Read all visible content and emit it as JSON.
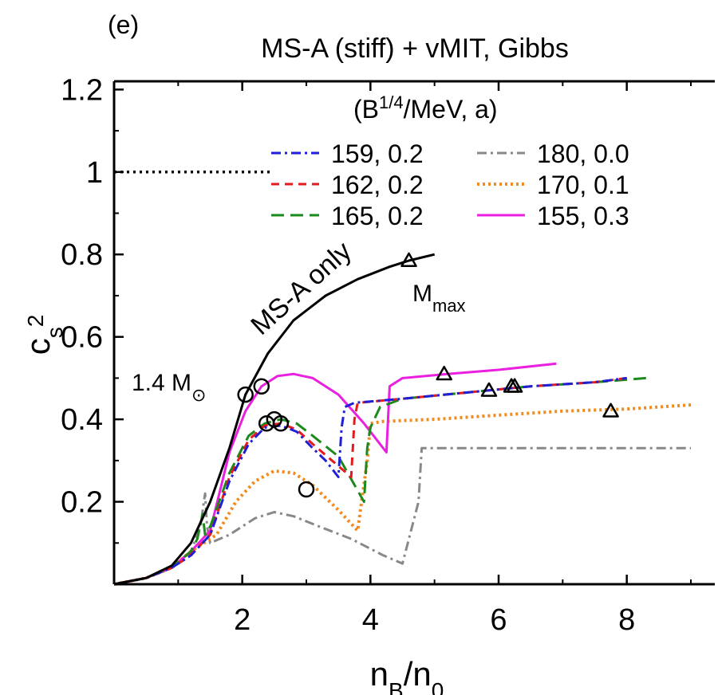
{
  "chart_data": {
    "type": "line",
    "panel_label": "(e)",
    "title": "MS-A (stiff) + vMIT, Gibbs",
    "xlim": [
      0,
      9
    ],
    "ylim": [
      0,
      1.22
    ],
    "x_ticks": [
      2,
      4,
      6,
      8
    ],
    "y_ticks": [
      0.2,
      0.4,
      0.6,
      0.8,
      1,
      1.2
    ],
    "x_tick_labels": [
      "2",
      "4",
      "6",
      "8"
    ],
    "y_tick_labels": [
      "0.2",
      "0.4",
      "0.6",
      "0.8",
      "1",
      "1.2"
    ],
    "xlabel": {
      "base": "n",
      "sub": "B",
      "rest": "/n",
      "sub2": "0"
    },
    "ylabel": {
      "base": "c",
      "sub": "s",
      "sup": "2"
    },
    "legend_title": {
      "pre": "(B",
      "sup": "1/4",
      "post": "/MeV, a)"
    },
    "causal_limit": {
      "y": 1,
      "x_range": [
        0,
        2.45
      ],
      "color": "#000000"
    },
    "annotations": {
      "only_label": "MS-A only",
      "mass_label": {
        "base": "1.4 M",
        "sub": "⊙"
      },
      "mmax_label": {
        "base": "M",
        "sub": "max"
      }
    },
    "series": [
      {
        "name": "MS-A only",
        "color": "#000000",
        "dash": "solid",
        "points": [
          [
            0,
            0
          ],
          [
            0.5,
            0.015
          ],
          [
            0.9,
            0.045
          ],
          [
            1.2,
            0.1
          ],
          [
            1.5,
            0.2
          ],
          [
            1.8,
            0.33
          ],
          [
            2.05,
            0.46
          ],
          [
            2.4,
            0.56
          ],
          [
            2.8,
            0.64
          ],
          [
            3.3,
            0.7
          ],
          [
            3.8,
            0.74
          ],
          [
            4.3,
            0.77
          ],
          [
            4.6,
            0.785
          ],
          [
            5.0,
            0.8
          ]
        ],
        "markers": [
          {
            "type": "circle",
            "x": 2.05,
            "y": 0.46
          },
          {
            "type": "triangle",
            "x": 4.6,
            "y": 0.785
          }
        ]
      },
      {
        "name": "159, 0.2",
        "color": "#1f1fd6",
        "dash": "dashdot",
        "points": [
          [
            0,
            0
          ],
          [
            0.5,
            0.015
          ],
          [
            0.9,
            0.04
          ],
          [
            1.2,
            0.07
          ],
          [
            1.5,
            0.12
          ],
          [
            1.8,
            0.25
          ],
          [
            2.1,
            0.34
          ],
          [
            2.35,
            0.38
          ],
          [
            2.6,
            0.385
          ],
          [
            2.85,
            0.37
          ],
          [
            3.1,
            0.33
          ],
          [
            3.3,
            0.3
          ],
          [
            3.5,
            0.26
          ],
          [
            3.55,
            0.38
          ],
          [
            3.6,
            0.43
          ],
          [
            3.75,
            0.44
          ],
          [
            4.5,
            0.45
          ],
          [
            5.5,
            0.465
          ],
          [
            6.5,
            0.48
          ],
          [
            7.5,
            0.49
          ],
          [
            8.0,
            0.5
          ]
        ],
        "markers": [
          {
            "type": "circle",
            "x": 2.5,
            "y": 0.4
          },
          {
            "type": "triangle",
            "x": 6.25,
            "y": 0.48
          }
        ]
      },
      {
        "name": "162, 0.2",
        "color": "#e41a1c",
        "dash": "dash",
        "points": [
          [
            0,
            0
          ],
          [
            0.5,
            0.015
          ],
          [
            0.9,
            0.04
          ],
          [
            1.1,
            0.06
          ],
          [
            1.25,
            0.08
          ],
          [
            1.5,
            0.12
          ],
          [
            1.8,
            0.26
          ],
          [
            2.1,
            0.35
          ],
          [
            2.35,
            0.385
          ],
          [
            2.6,
            0.39
          ],
          [
            2.85,
            0.375
          ],
          [
            3.1,
            0.34
          ],
          [
            3.4,
            0.3
          ],
          [
            3.7,
            0.26
          ],
          [
            3.75,
            0.4
          ],
          [
            3.8,
            0.44
          ],
          [
            4.5,
            0.45
          ],
          [
            5.5,
            0.465
          ],
          [
            6.5,
            0.48
          ],
          [
            7.5,
            0.49
          ],
          [
            8.0,
            0.5
          ]
        ],
        "markers": [
          {
            "type": "circle",
            "x": 2.6,
            "y": 0.39
          },
          {
            "type": "triangle",
            "x": 6.2,
            "y": 0.48
          }
        ]
      },
      {
        "name": "165, 0.2",
        "color": "#1a8a1a",
        "dash": "longdash",
        "points": [
          [
            0,
            0
          ],
          [
            0.5,
            0.015
          ],
          [
            0.9,
            0.04
          ],
          [
            1.2,
            0.08
          ],
          [
            1.3,
            0.11
          ],
          [
            1.38,
            0.17
          ],
          [
            1.42,
            0.12
          ],
          [
            1.5,
            0.14
          ],
          [
            1.8,
            0.27
          ],
          [
            2.1,
            0.36
          ],
          [
            2.35,
            0.39
          ],
          [
            2.6,
            0.4
          ],
          [
            2.85,
            0.39
          ],
          [
            3.1,
            0.36
          ],
          [
            3.5,
            0.31
          ],
          [
            3.9,
            0.2
          ],
          [
            3.95,
            0.33
          ],
          [
            4.0,
            0.38
          ],
          [
            4.15,
            0.43
          ],
          [
            4.5,
            0.45
          ],
          [
            5.5,
            0.465
          ],
          [
            6.5,
            0.48
          ],
          [
            7.5,
            0.49
          ],
          [
            8.3,
            0.5
          ]
        ],
        "markers": [
          {
            "type": "circle",
            "x": 2.38,
            "y": 0.39
          },
          {
            "type": "triangle",
            "x": 5.85,
            "y": 0.47
          }
        ]
      },
      {
        "name": "180, 0.0",
        "color": "#888888",
        "dash": "dashdot",
        "points": [
          [
            0,
            0
          ],
          [
            0.5,
            0.015
          ],
          [
            0.9,
            0.04
          ],
          [
            1.2,
            0.08
          ],
          [
            1.35,
            0.14
          ],
          [
            1.4,
            0.2
          ],
          [
            1.42,
            0.22
          ],
          [
            1.45,
            0.14
          ],
          [
            1.5,
            0.1
          ],
          [
            1.8,
            0.12
          ],
          [
            2.2,
            0.16
          ],
          [
            2.5,
            0.175
          ],
          [
            2.8,
            0.165
          ],
          [
            3.2,
            0.14
          ],
          [
            3.7,
            0.11
          ],
          [
            4.2,
            0.07
          ],
          [
            4.5,
            0.05
          ],
          [
            4.75,
            0.2
          ],
          [
            4.8,
            0.33
          ],
          [
            5.5,
            0.33
          ],
          [
            6.5,
            0.33
          ],
          [
            7.5,
            0.33
          ],
          [
            9.0,
            0.33
          ]
        ],
        "markers": []
      },
      {
        "name": "170, 0.1",
        "color": "#f28a1e",
        "dash": "dot",
        "points": [
          [
            0,
            0
          ],
          [
            0.5,
            0.015
          ],
          [
            0.9,
            0.04
          ],
          [
            1.2,
            0.08
          ],
          [
            1.4,
            0.1
          ],
          [
            1.6,
            0.12
          ],
          [
            1.9,
            0.2
          ],
          [
            2.2,
            0.25
          ],
          [
            2.5,
            0.275
          ],
          [
            2.8,
            0.27
          ],
          [
            3.1,
            0.24
          ],
          [
            3.5,
            0.18
          ],
          [
            3.8,
            0.13
          ],
          [
            3.95,
            0.3
          ],
          [
            4.0,
            0.39
          ],
          [
            4.2,
            0.395
          ],
          [
            5.0,
            0.4
          ],
          [
            6.0,
            0.41
          ],
          [
            7.0,
            0.42
          ],
          [
            8.0,
            0.425
          ],
          [
            9.0,
            0.435
          ]
        ],
        "markers": [
          {
            "type": "circle",
            "x": 3.0,
            "y": 0.23
          },
          {
            "type": "triangle",
            "x": 7.75,
            "y": 0.42
          }
        ]
      },
      {
        "name": "155, 0.3",
        "color": "#ea1fe0",
        "dash": "solid",
        "points": [
          [
            0,
            0
          ],
          [
            0.5,
            0.015
          ],
          [
            0.9,
            0.04
          ],
          [
            1.2,
            0.08
          ],
          [
            1.5,
            0.13
          ],
          [
            1.8,
            0.32
          ],
          [
            2.05,
            0.42
          ],
          [
            2.3,
            0.48
          ],
          [
            2.55,
            0.505
          ],
          [
            2.8,
            0.51
          ],
          [
            3.1,
            0.5
          ],
          [
            3.5,
            0.46
          ],
          [
            3.9,
            0.39
          ],
          [
            4.25,
            0.32
          ],
          [
            4.3,
            0.48
          ],
          [
            4.5,
            0.5
          ],
          [
            5.2,
            0.51
          ],
          [
            6.0,
            0.52
          ],
          [
            6.9,
            0.535
          ]
        ],
        "markers": [
          {
            "type": "circle",
            "x": 2.3,
            "y": 0.48
          },
          {
            "type": "triangle",
            "x": 5.15,
            "y": 0.51
          }
        ]
      }
    ]
  }
}
